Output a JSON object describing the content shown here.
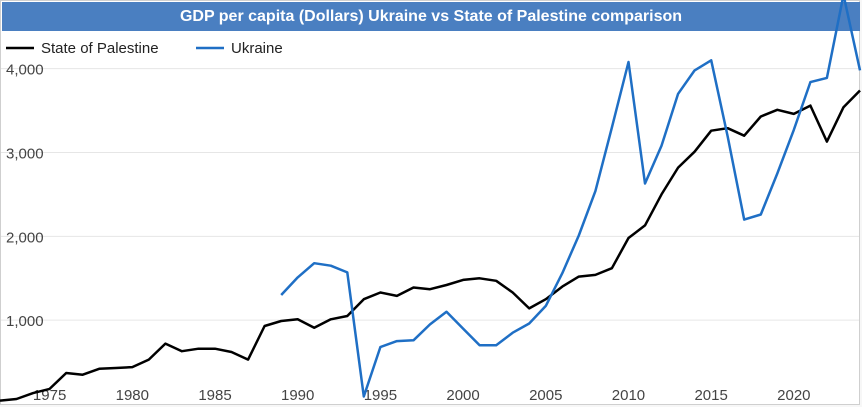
{
  "chart_data": {
    "type": "line",
    "title": "GDP per capita (Dollars) Ukraine vs State of Palestine comparison",
    "xlabel": "",
    "ylabel": "",
    "xlim": [
      1972,
      2024
    ],
    "ylim": [
      0,
      4700
    ],
    "x_ticks": [
      1975,
      1980,
      1985,
      1990,
      1995,
      2000,
      2005,
      2010,
      2015,
      2020
    ],
    "y_ticks": [
      1000,
      2000,
      3000,
      4000
    ],
    "y_tick_labels": [
      "1,000",
      "2,000",
      "3,000",
      "4,000"
    ],
    "grid": "horizontal",
    "legend_position": "top-left",
    "series": [
      {
        "name": "State of Palestine",
        "color": "#000000",
        "x": [
          1972,
          1973,
          1974,
          1975,
          1976,
          1977,
          1978,
          1979,
          1980,
          1981,
          1982,
          1983,
          1984,
          1985,
          1986,
          1987,
          1988,
          1989,
          1990,
          1991,
          1992,
          1993,
          1994,
          1995,
          1996,
          1997,
          1998,
          1999,
          2000,
          2001,
          2002,
          2003,
          2004,
          2005,
          2006,
          2007,
          2008,
          2009,
          2010,
          2011,
          2012,
          2013,
          2014,
          2015,
          2016,
          2017,
          2018,
          2019,
          2020,
          2021,
          2022,
          2023,
          2024
        ],
        "values": [
          40,
          60,
          130,
          180,
          370,
          350,
          420,
          430,
          440,
          530,
          720,
          630,
          660,
          660,
          620,
          530,
          930,
          990,
          1010,
          910,
          1010,
          1050,
          1250,
          1330,
          1290,
          1390,
          1370,
          1420,
          1480,
          1500,
          1470,
          1330,
          1140,
          1250,
          1400,
          1520,
          1540,
          1620,
          1980,
          2130,
          2500,
          2820,
          3010,
          3260,
          3290,
          3200,
          3430,
          3510,
          3460,
          3560,
          3130,
          3540,
          3740
        ]
      },
      {
        "name": "Ukraine",
        "color": "#1f6fc5",
        "x": [
          1989,
          1990,
          1991,
          1992,
          1993,
          1994,
          1995,
          1996,
          1997,
          1998,
          1999,
          2000,
          2001,
          2002,
          2003,
          2004,
          2005,
          2006,
          2007,
          2008,
          2009,
          2010,
          2011,
          2012,
          2013,
          2014,
          2015,
          2016,
          2017,
          2018,
          2019,
          2020,
          2021,
          2022,
          2023,
          2024
        ],
        "values": [
          1300,
          1510,
          1680,
          1650,
          1570,
          90,
          680,
          750,
          760,
          950,
          1100,
          900,
          700,
          700,
          850,
          960,
          1170,
          1560,
          2010,
          2540,
          3300,
          4080,
          2630,
          3080,
          3700,
          3980,
          4100,
          3190,
          2200,
          2260,
          2750,
          3270,
          3840,
          3890,
          4880,
          3980
        ]
      }
    ]
  }
}
